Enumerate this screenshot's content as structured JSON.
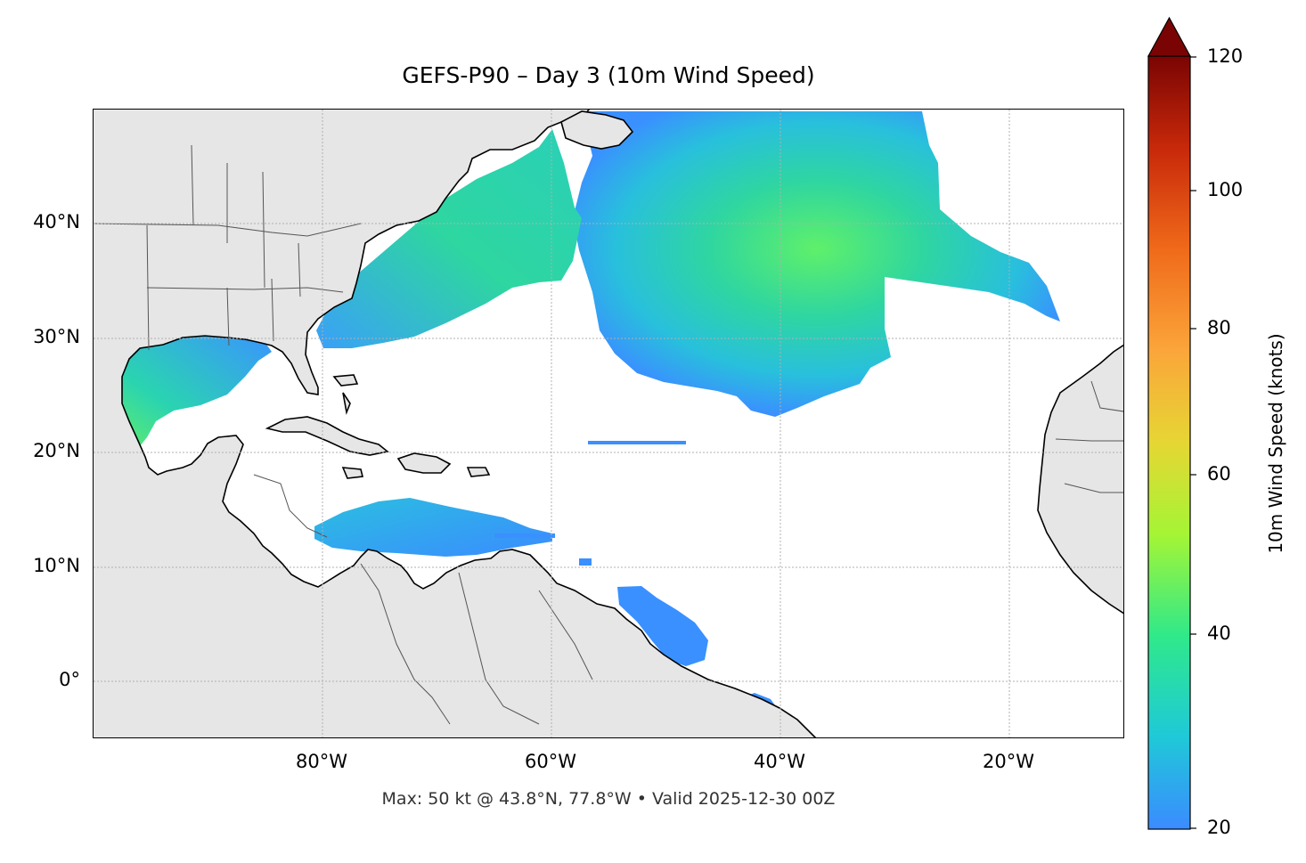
{
  "title": "GEFS-P90 – Day 3 (10m Wind Speed)",
  "footer": "Max: 50 kt @ 43.8°N, 77.8°W • Valid 2025-12-30 00Z",
  "lat_labels": [
    "40°N",
    "30°N",
    "20°N",
    "10°N",
    "0°"
  ],
  "lon_labels": [
    "80°W",
    "60°W",
    "40°W",
    "20°W"
  ],
  "colorbar": {
    "label": "10m Wind Speed (knots)",
    "min": 20,
    "max": 120,
    "extend": "max",
    "ticks": [
      "120",
      "100",
      "80",
      "60",
      "40",
      "20"
    ],
    "colors": [
      "#3b8bff",
      "#1fc9d8",
      "#2fe98a",
      "#a4f535",
      "#e6d634",
      "#fba53a",
      "#f06a1a",
      "#c8290a",
      "#7a0403"
    ]
  },
  "colors": {
    "land": "#e6e6e6",
    "coastline": "#000000",
    "borders": "#555555",
    "grid": "#b0b0b0"
  }
}
